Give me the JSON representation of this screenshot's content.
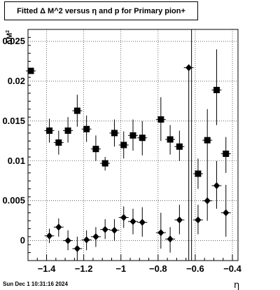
{
  "title_parts": {
    "pre": "Fitted ",
    "delta": "Δ",
    "mid": " M^2 versus ",
    "eta": "η",
    "post": " and p for Primary pion+"
  },
  "timestamp": "Sun Dec  1 10:31:16 2024",
  "chart_data": {
    "type": "scatter",
    "title": "Fitted Δ M^2 versus η and p for Primary pion+",
    "xlabel": "η",
    "ylabel_main": "M",
    "ylabel_sup": "2",
    "ylabel_pre": "Δ",
    "xlim": [
      -1.5,
      -0.37
    ],
    "ylim": [
      -0.0025,
      0.0265
    ],
    "grid": true,
    "x_ticks": [
      {
        "value": -1.4,
        "label": "−1.4"
      },
      {
        "value": -1.2,
        "label": "−1.2"
      },
      {
        "value": -1.0,
        "label": "−1"
      },
      {
        "value": -0.8,
        "label": "−0.8"
      },
      {
        "value": -0.6,
        "label": "−0.6"
      },
      {
        "value": -0.4,
        "label": "−0.4"
      }
    ],
    "y_ticks": [
      {
        "value": 0,
        "label": "0"
      },
      {
        "value": 0.005,
        "label": "0.005"
      },
      {
        "value": 0.01,
        "label": "0.01"
      },
      {
        "value": 0.015,
        "label": "0.015"
      },
      {
        "value": 0.02,
        "label": "0.02"
      },
      {
        "value": 0.025,
        "label": "0.025"
      }
    ],
    "vertical_line_x": -0.62,
    "series": [
      {
        "marker": "square",
        "points": [
          {
            "x": -1.485,
            "y": 0.0213,
            "ylo": 0.0213,
            "yhi": 0.0213
          },
          {
            "x": -1.385,
            "y": 0.0138,
            "ylo": 0.0123,
            "yhi": 0.0153
          },
          {
            "x": -1.335,
            "y": 0.0123,
            "ylo": 0.0108,
            "yhi": 0.0138
          },
          {
            "x": -1.285,
            "y": 0.0138,
            "ylo": 0.0123,
            "yhi": 0.0155
          },
          {
            "x": -1.235,
            "y": 0.0163,
            "ylo": 0.0143,
            "yhi": 0.0183
          },
          {
            "x": -1.185,
            "y": 0.014,
            "ylo": 0.0124,
            "yhi": 0.0157
          },
          {
            "x": -1.135,
            "y": 0.0115,
            "ylo": 0.01,
            "yhi": 0.0132
          },
          {
            "x": -1.085,
            "y": 0.0097,
            "ylo": 0.0088,
            "yhi": 0.0105
          },
          {
            "x": -1.035,
            "y": 0.0135,
            "ylo": 0.0118,
            "yhi": 0.0152
          },
          {
            "x": -0.985,
            "y": 0.012,
            "ylo": 0.0103,
            "yhi": 0.0137
          },
          {
            "x": -0.935,
            "y": 0.0132,
            "ylo": 0.0113,
            "yhi": 0.0152
          },
          {
            "x": -0.885,
            "y": 0.0129,
            "ylo": 0.0107,
            "yhi": 0.015
          },
          {
            "x": -0.785,
            "y": 0.0152,
            "ylo": 0.0125,
            "yhi": 0.018
          },
          {
            "x": -0.735,
            "y": 0.0127,
            "ylo": 0.0108,
            "yhi": 0.0145
          },
          {
            "x": -0.685,
            "y": 0.0118,
            "ylo": 0.01,
            "yhi": 0.0138
          },
          {
            "x": -0.585,
            "y": 0.0084,
            "ylo": 0.0065,
            "yhi": 0.0103
          },
          {
            "x": -0.535,
            "y": 0.0126,
            "ylo": 0.008,
            "yhi": 0.0165
          },
          {
            "x": -0.485,
            "y": 0.0189,
            "ylo": 0.0145,
            "yhi": 0.024
          },
          {
            "x": -0.435,
            "y": 0.0109,
            "ylo": 0.0085,
            "yhi": 0.013
          }
        ]
      },
      {
        "marker": "diamond",
        "points": [
          {
            "x": -1.385,
            "y": 0.0006,
            "ylo": -0.0003,
            "yhi": 0.0015
          },
          {
            "x": -1.335,
            "y": 0.0017,
            "ylo": 0.0005,
            "yhi": 0.0028
          },
          {
            "x": -1.285,
            "y": 0.0,
            "ylo": -0.0012,
            "yhi": 0.0013
          },
          {
            "x": -1.235,
            "y": -0.001,
            "ylo": -0.0025,
            "yhi": 0.0005
          },
          {
            "x": -1.185,
            "y": 0.0001,
            "ylo": -0.0012,
            "yhi": 0.0013
          },
          {
            "x": -1.135,
            "y": 0.0005,
            "ylo": -0.0008,
            "yhi": 0.0017
          },
          {
            "x": -1.085,
            "y": 0.0014,
            "ylo": 0.0002,
            "yhi": 0.0027
          },
          {
            "x": -1.035,
            "y": 0.0013,
            "ylo": 0.0,
            "yhi": 0.0027
          },
          {
            "x": -0.985,
            "y": 0.0029,
            "ylo": 0.0016,
            "yhi": 0.0043
          },
          {
            "x": -0.935,
            "y": 0.0024,
            "ylo": 0.0008,
            "yhi": 0.004
          },
          {
            "x": -0.885,
            "y": 0.0023,
            "ylo": 0.0005,
            "yhi": 0.0042
          },
          {
            "x": -0.785,
            "y": 0.001,
            "ylo": -0.001,
            "yhi": 0.0035
          },
          {
            "x": -0.735,
            "y": 0.0002,
            "ylo": -0.0015,
            "yhi": 0.0017
          },
          {
            "x": -0.685,
            "y": 0.0026,
            "ylo": 0.0008,
            "yhi": 0.0045
          },
          {
            "x": -0.635,
            "y": 0.0217,
            "ylo": -0.0025,
            "yhi": 0.0217
          },
          {
            "x": -0.585,
            "y": 0.0026,
            "ylo": 0.0008,
            "yhi": 0.0045
          },
          {
            "x": -0.535,
            "y": 0.005,
            "ylo": 0.0025,
            "yhi": 0.008
          },
          {
            "x": -0.485,
            "y": 0.0069,
            "ylo": 0.004,
            "yhi": 0.01
          },
          {
            "x": -0.435,
            "y": 0.0035,
            "ylo": 0.0005,
            "yhi": 0.007
          }
        ]
      }
    ]
  }
}
